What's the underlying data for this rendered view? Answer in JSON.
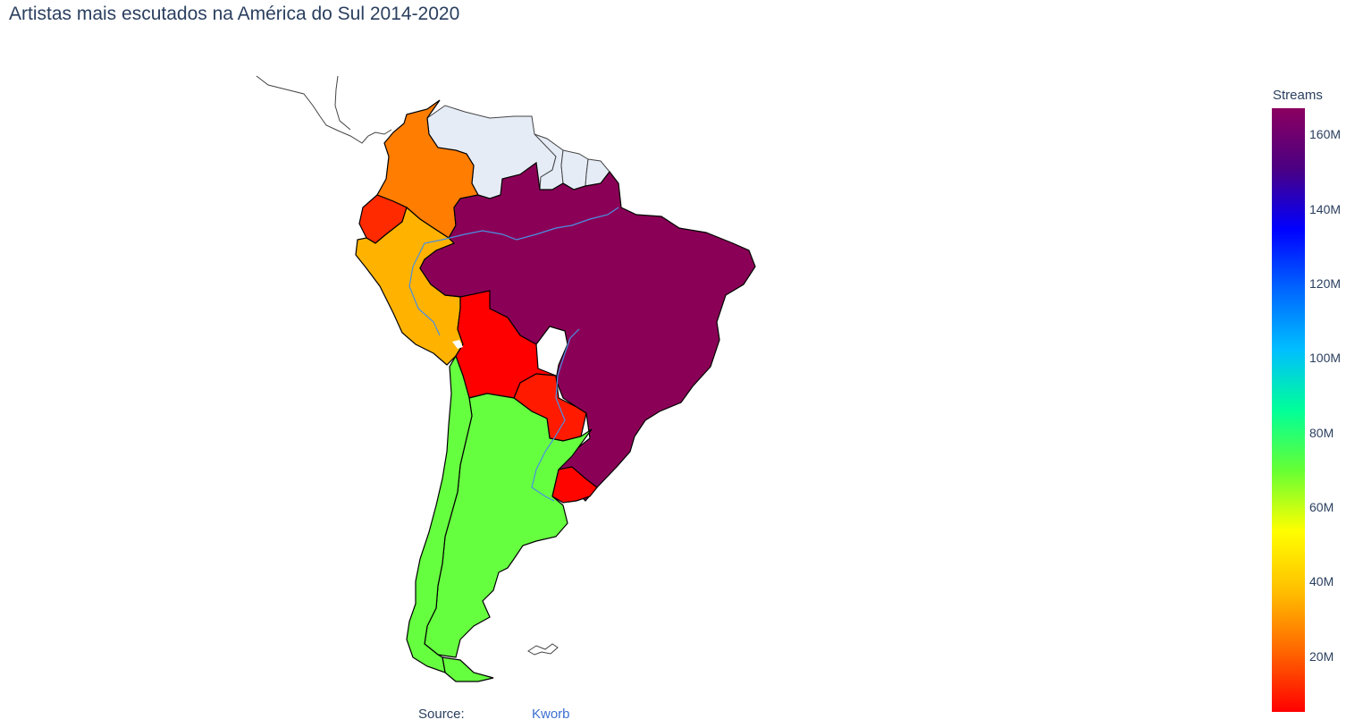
{
  "title": "Artistas mais escutados na América do Sul 2014-2020",
  "colorbar": {
    "title": "Streams",
    "min": 5000000,
    "max": 167000000,
    "ticks": [
      {
        "value": 20000000,
        "label": "20M"
      },
      {
        "value": 40000000,
        "label": "40M"
      },
      {
        "value": 60000000,
        "label": "60M"
      },
      {
        "value": 80000000,
        "label": "80M"
      },
      {
        "value": 100000000,
        "label": "100M"
      },
      {
        "value": 120000000,
        "label": "120M"
      },
      {
        "value": 140000000,
        "label": "140M"
      },
      {
        "value": 160000000,
        "label": "160M"
      }
    ],
    "colorscale": [
      "#ff0000",
      "#ff6600",
      "#ffbf00",
      "#ffff00",
      "#66ff33",
      "#00ff99",
      "#00bfff",
      "#0066ff",
      "#0000ff",
      "#4b0082",
      "#8b0060"
    ]
  },
  "chart_data": {
    "type": "choropleth",
    "scope": "south america",
    "colorbar_title": "Streams",
    "no_data_color": "#e5ecf6",
    "regions": [
      {
        "country": "Brasil",
        "streams": 167000000,
        "color": "#8b0057"
      },
      {
        "country": "Argentina",
        "streams": 75000000,
        "color": "#66ff40"
      },
      {
        "country": "Chile",
        "streams": 75000000,
        "color": "#66ff40"
      },
      {
        "country": "Peru",
        "streams": 38000000,
        "color": "#ffb300"
      },
      {
        "country": "Colombia",
        "streams": 28000000,
        "color": "#ff7d00"
      },
      {
        "country": "Ecuador",
        "streams": 12000000,
        "color": "#ff2a00"
      },
      {
        "country": "Bolivia",
        "streams": 5000000,
        "color": "#ff0000"
      },
      {
        "country": "Paraguay",
        "streams": 8000000,
        "color": "#ff1a00"
      },
      {
        "country": "Uruguay",
        "streams": 6000000,
        "color": "#ff0500"
      }
    ],
    "no_data_regions": [
      "Venezuela",
      "Guyana",
      "Suriname",
      "French Guiana"
    ]
  },
  "source": {
    "label": "Source:",
    "link_text": "Kworb"
  }
}
